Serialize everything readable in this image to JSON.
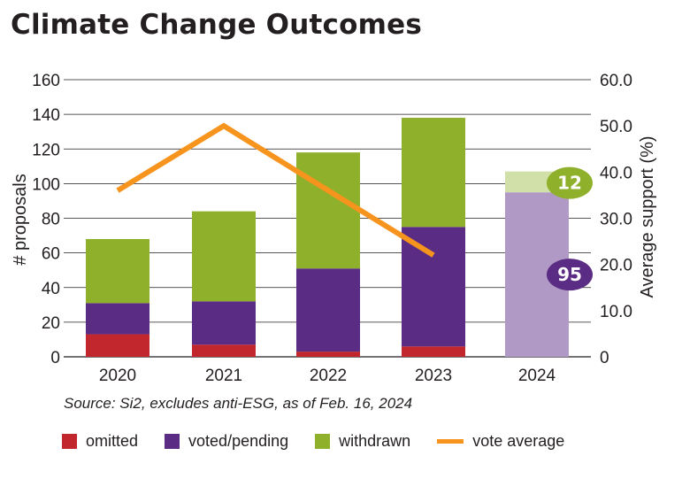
{
  "title": "Climate Change Outcomes",
  "source": "Source: Si2, excludes anti-ESG, as of Feb. 16, 2024",
  "chart_data": {
    "type": "bar",
    "stacked": true,
    "categories": [
      "2020",
      "2021",
      "2022",
      "2023",
      "2024"
    ],
    "series": [
      {
        "name": "omitted",
        "color": "#c1272d",
        "values": [
          13,
          7,
          3,
          6,
          0
        ]
      },
      {
        "name": "voted/pending",
        "color": "#5b2c83",
        "values": [
          18,
          25,
          48,
          69,
          95
        ],
        "color_2024": "#b09ac5"
      },
      {
        "name": "withdrawn",
        "color": "#8fb02b",
        "values": [
          37,
          52,
          67,
          63,
          12
        ],
        "color_2024": "#d1dfa8"
      }
    ],
    "line_series": {
      "name": "vote average",
      "color": "#f7941d",
      "x": [
        "2020",
        "2021",
        "2022",
        "2023"
      ],
      "values": [
        36,
        50,
        36,
        22
      ]
    },
    "badges": [
      {
        "label": "12",
        "series": "withdrawn",
        "category": "2024",
        "color": "#8fb02b"
      },
      {
        "label": "95",
        "series": "voted/pending",
        "category": "2024",
        "color": "#5b2c83"
      }
    ],
    "ylabel_left": "# proposals",
    "ylabel_right": "Average support (%)",
    "ylim_left": [
      0,
      160
    ],
    "ylim_right": [
      0,
      60
    ],
    "yticks_left": [
      "0",
      "20",
      "40",
      "60",
      "80",
      "100",
      "120",
      "140",
      "160"
    ],
    "yticks_right": [
      "0",
      "10.0",
      "20.0",
      "30.0",
      "40.0",
      "50.0",
      "60.0"
    ],
    "grid": true,
    "legend": "bottom"
  },
  "legend": [
    {
      "label": "omitted",
      "color": "#c1272d",
      "kind": "box"
    },
    {
      "label": "voted/pending",
      "color": "#5b2c83",
      "kind": "box"
    },
    {
      "label": "withdrawn",
      "color": "#8fb02b",
      "kind": "box"
    },
    {
      "label": "vote average",
      "color": "#f7941d",
      "kind": "line"
    }
  ]
}
